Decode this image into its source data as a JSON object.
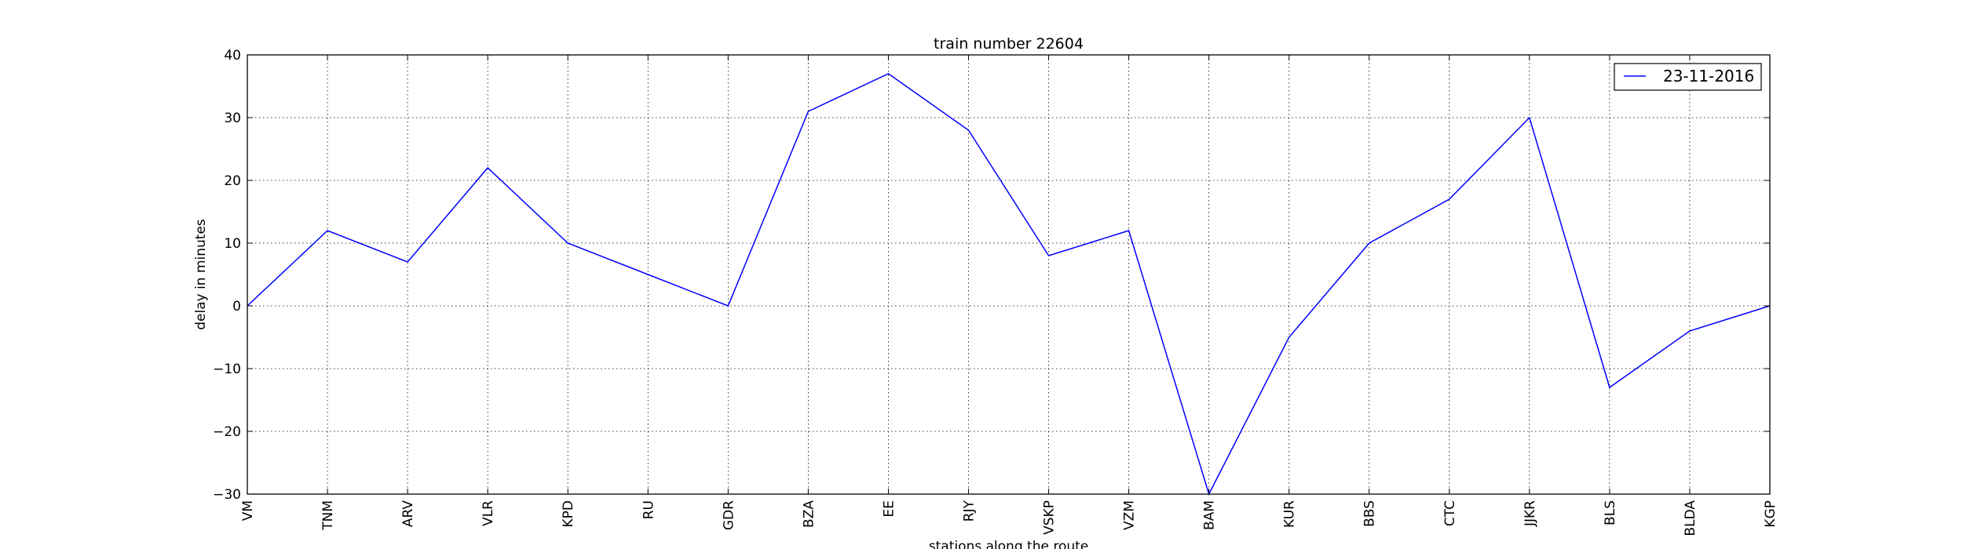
{
  "chart_data": {
    "type": "line",
    "title": "train number 22604",
    "xlabel": "stations along the route",
    "ylabel": "delay in minutes",
    "categories": [
      "VM",
      "TNM",
      "ARV",
      "VLR",
      "KPD",
      "RU",
      "GDR",
      "BZA",
      "EE",
      "RJY",
      "VSKP",
      "VZM",
      "BAM",
      "KUR",
      "BBS",
      "CTC",
      "JJKR",
      "BLS",
      "BLDA",
      "KGP"
    ],
    "series": [
      {
        "name": "23-11-2016",
        "color": "#0000ff",
        "values": [
          0,
          12,
          7,
          22,
          10,
          5,
          0,
          31,
          37,
          28,
          8,
          12,
          -30,
          -5,
          10,
          17,
          30,
          -13,
          -4,
          0
        ]
      }
    ],
    "ylim": [
      -30,
      40
    ],
    "yticks": [
      -30,
      -20,
      -10,
      0,
      10,
      20,
      30,
      40
    ],
    "ytick_labels": [
      "−30",
      "−20",
      "−10",
      "0",
      "10",
      "20",
      "30",
      "40"
    ],
    "grid": true,
    "legend_position": "top-right"
  }
}
